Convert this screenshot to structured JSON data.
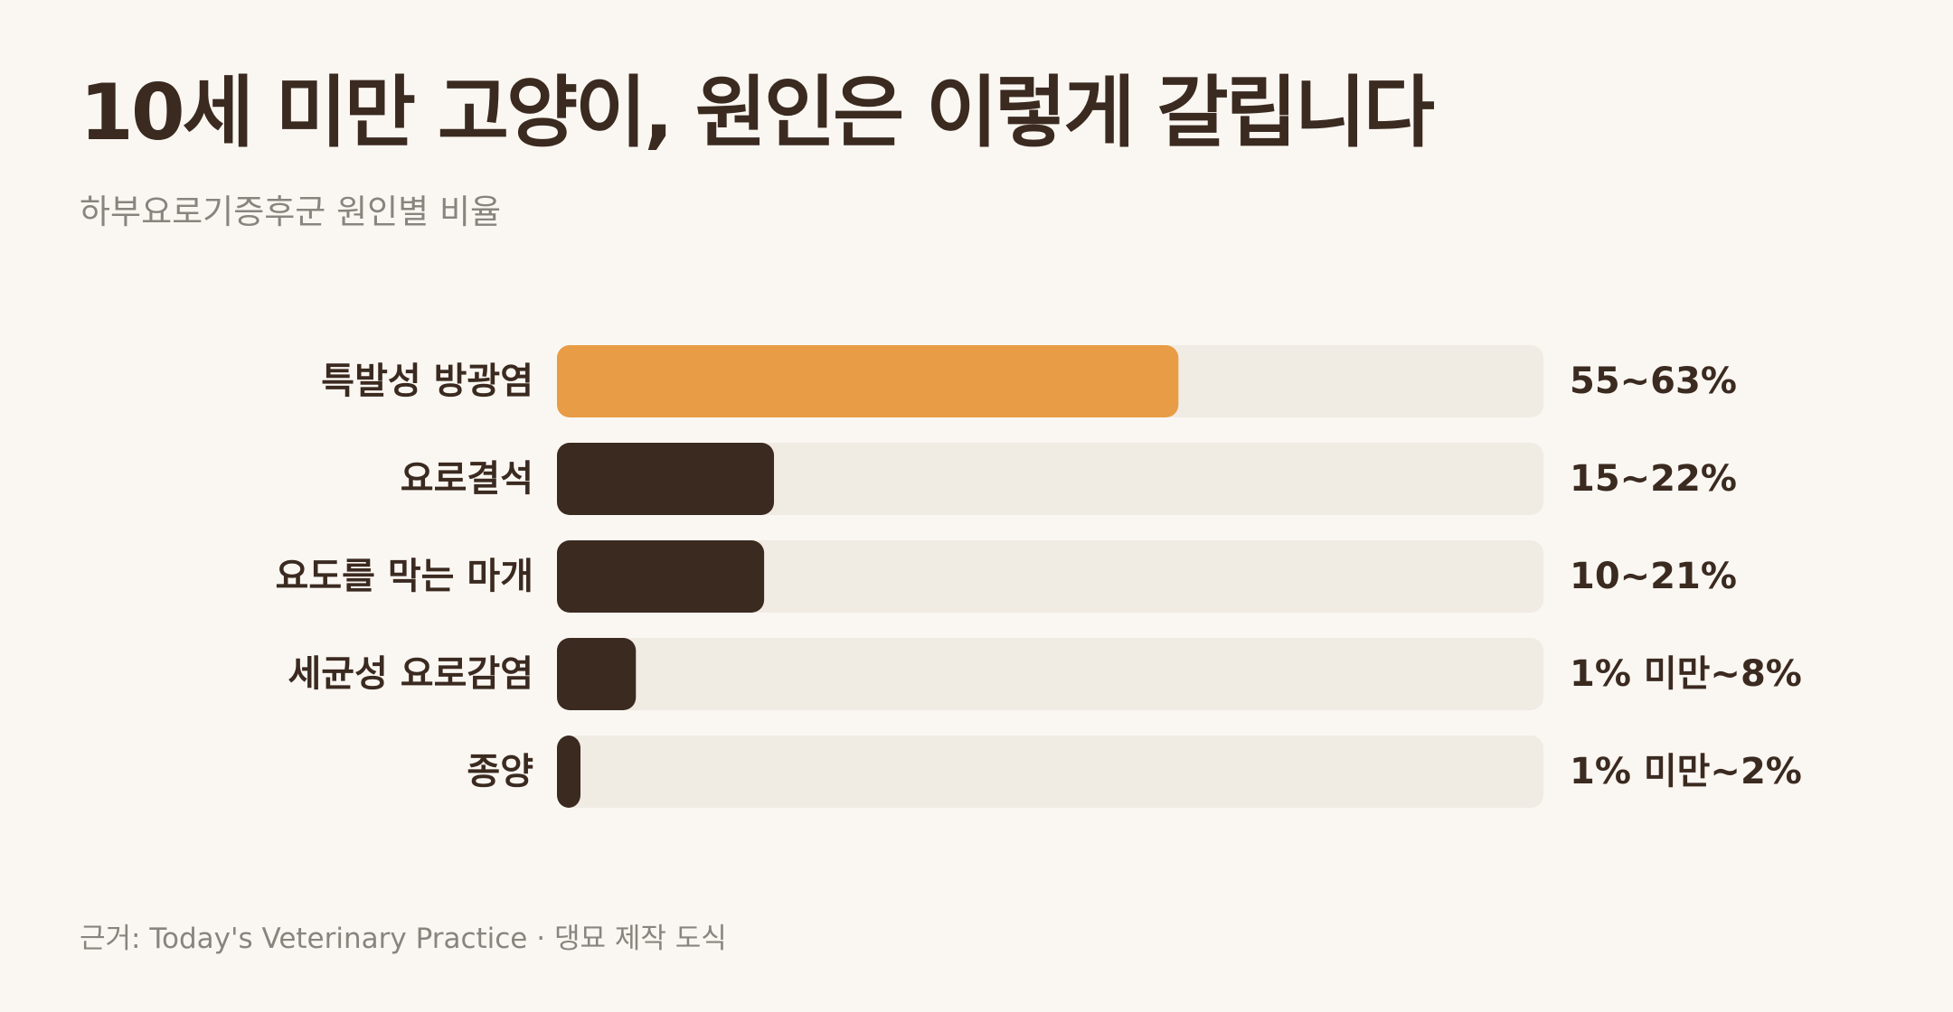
{
  "header": {
    "title": "10세 미만 고양이, 원인은 이렇게 갈립니다",
    "subtitle": "하부요로기증후군 원인별 비율"
  },
  "footer": {
    "source": "근거: Today's Veterinary Practice · 댕묘 제작 도식"
  },
  "colors": {
    "highlight": "#e89c46",
    "bar": "#3b2a20",
    "track": "#f0ebe3",
    "background": "#faf7f2"
  },
  "chart_data": {
    "type": "bar",
    "orientation": "horizontal",
    "title": "10세 미만 고양이, 원인은 이렇게 갈립니다",
    "subtitle": "하부요로기증후군 원인별 비율",
    "xlim": [
      0,
      100
    ],
    "grid": false,
    "categories": [
      "특발성 방광염",
      "요로결석",
      "요도를 막는 마개",
      "세균성 요로감염",
      "종양"
    ],
    "values": [
      63,
      22,
      21,
      8,
      2
    ],
    "value_labels": [
      "55~63%",
      "15~22%",
      "10~21%",
      "1% 미만~8%",
      "1% 미만~2%"
    ],
    "highlight_index": 0
  }
}
